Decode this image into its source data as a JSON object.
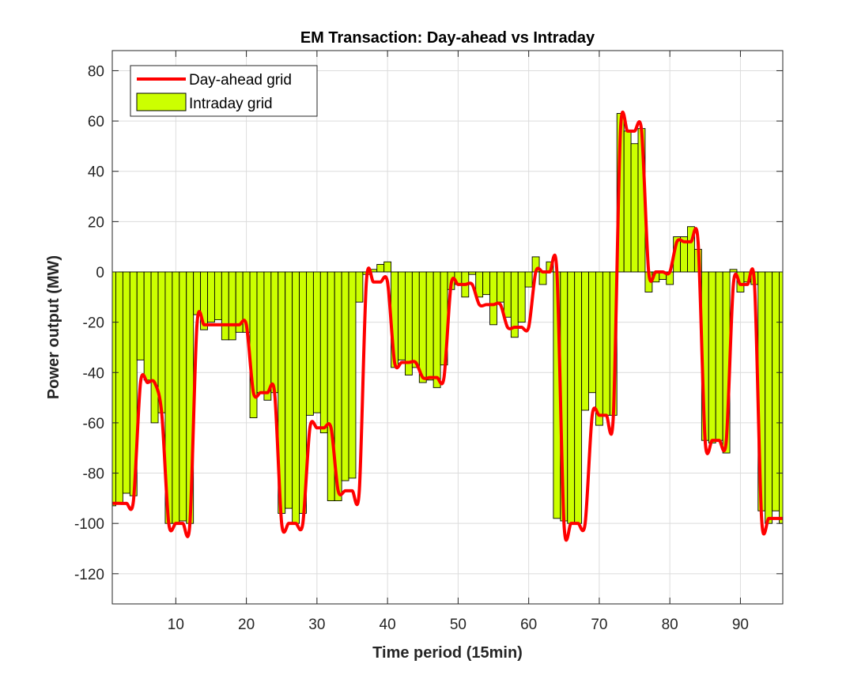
{
  "chart_data": {
    "type": "bar",
    "title": "EM Transaction: Day-ahead vs Intraday",
    "xlabel": "Time period (15min)",
    "ylabel": "Power output (MW)",
    "xlim": [
      1,
      96
    ],
    "ylim": [
      -132,
      88
    ],
    "xticks": [
      10,
      20,
      30,
      40,
      50,
      60,
      70,
      80,
      90
    ],
    "yticks": [
      -120,
      -100,
      -80,
      -60,
      -40,
      -20,
      0,
      20,
      40,
      60,
      80
    ],
    "grid": true,
    "legend": {
      "placement": "top-left"
    },
    "x": [
      1,
      2,
      3,
      4,
      5,
      6,
      7,
      8,
      9,
      10,
      11,
      12,
      13,
      14,
      15,
      16,
      17,
      18,
      19,
      20,
      21,
      22,
      23,
      24,
      25,
      26,
      27,
      28,
      29,
      30,
      31,
      32,
      33,
      34,
      35,
      36,
      37,
      38,
      39,
      40,
      41,
      42,
      43,
      44,
      45,
      46,
      47,
      48,
      49,
      50,
      51,
      52,
      53,
      54,
      55,
      56,
      57,
      58,
      59,
      60,
      61,
      62,
      63,
      64,
      65,
      66,
      67,
      68,
      69,
      70,
      71,
      72,
      73,
      74,
      75,
      76,
      77,
      78,
      79,
      80,
      81,
      82,
      83,
      84,
      85,
      86,
      87,
      88,
      89,
      90,
      91,
      92,
      93,
      94,
      95,
      96
    ],
    "series": [
      {
        "name": "Day-ahead grid",
        "type": "line",
        "color": "#ff0000",
        "values": [
          -92,
          -92,
          -92,
          -91,
          -44,
          -44,
          -44,
          -56,
          -100,
          -100,
          -100,
          -100,
          -21,
          -21,
          -21,
          -21,
          -21,
          -21,
          -21,
          -21,
          -48,
          -48,
          -48,
          -48,
          -100,
          -100,
          -100,
          -100,
          -62,
          -62,
          -62,
          -62,
          -87,
          -87,
          -87,
          -87,
          -4,
          -4,
          -4,
          -4,
          -36,
          -36,
          -36,
          -36,
          -42,
          -42,
          -42,
          -42,
          -5,
          -5,
          -5,
          -5,
          -13,
          -13,
          -13,
          -13,
          -22,
          -22,
          -22,
          -22,
          0,
          0,
          0,
          0,
          -100,
          -100,
          -100,
          -100,
          -57,
          -57,
          -57,
          -57,
          56,
          56,
          56,
          56,
          0,
          0,
          0,
          0,
          12,
          12,
          12,
          12,
          -67,
          -67,
          -67,
          -67,
          -5,
          -5,
          -5,
          -5,
          -98,
          -98,
          -98,
          -98
        ]
      },
      {
        "name": "Intraday grid",
        "type": "bar",
        "color": "#ccff00",
        "values": [
          -93,
          -92,
          -88,
          -89,
          -35,
          -43,
          -60,
          -56,
          -100,
          -100,
          -99,
          -100,
          -17,
          -23,
          -20,
          -19,
          -27,
          -27,
          -24,
          -24,
          -58,
          -48,
          -51,
          -48,
          -96,
          -94,
          -100,
          -96,
          -57,
          -56,
          -64,
          -91,
          -91,
          -83,
          -82,
          -12,
          -1,
          1,
          3,
          4,
          -38,
          -35,
          -41,
          -38,
          -44,
          -43,
          -46,
          -37,
          -7,
          -5,
          -10,
          -1,
          -10,
          -9,
          -21,
          -12,
          -18,
          -26,
          -20,
          -6,
          6,
          -5,
          4,
          -98,
          -99,
          -100,
          -100,
          -55,
          -48,
          -61,
          -57,
          -57,
          63,
          56,
          51,
          57,
          -8,
          -4,
          -3,
          -5,
          14,
          14,
          18,
          9,
          -67,
          -68,
          -67,
          -72,
          1,
          -8,
          -4,
          -5,
          -95,
          -100,
          -95,
          -100
        ]
      }
    ]
  }
}
